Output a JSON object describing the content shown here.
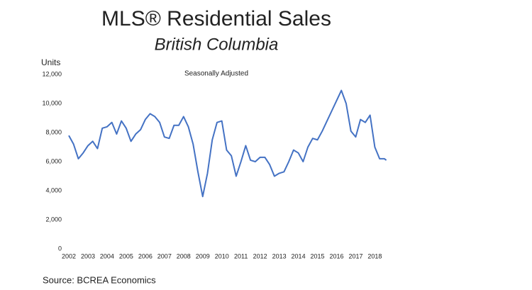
{
  "chart_data": {
    "type": "line",
    "title": "MLS® Residential Sales",
    "subtitle": "British Columbia",
    "y_label": "Units",
    "annotation": "Seasonally Adjusted",
    "source": "Source: BCREA Economics",
    "x": [
      2002,
      2002.25,
      2002.5,
      2002.75,
      2003,
      2003.25,
      2003.5,
      2003.75,
      2004,
      2004.25,
      2004.5,
      2004.75,
      2005,
      2005.25,
      2005.5,
      2005.75,
      2006,
      2006.25,
      2006.5,
      2006.75,
      2007,
      2007.25,
      2007.5,
      2007.75,
      2008,
      2008.25,
      2008.5,
      2008.75,
      2009,
      2009.25,
      2009.5,
      2009.75,
      2010,
      2010.25,
      2010.5,
      2010.75,
      2011,
      2011.25,
      2011.5,
      2011.75,
      2012,
      2012.25,
      2012.5,
      2012.75,
      2013,
      2013.25,
      2013.5,
      2013.75,
      2014,
      2014.25,
      2014.5,
      2014.75,
      2015,
      2015.25,
      2015.5,
      2015.75,
      2016,
      2016.25,
      2016.5,
      2016.75,
      2017,
      2017.25,
      2017.5,
      2017.75,
      2018,
      2018.25,
      2018.5,
      2018.6
    ],
    "series": [
      {
        "name": "Units",
        "color": "#4472c4",
        "values": [
          7800,
          7200,
          6200,
          6600,
          7100,
          7400,
          6900,
          8300,
          8400,
          8700,
          7900,
          8800,
          8300,
          7400,
          7900,
          8200,
          8900,
          9300,
          9100,
          8700,
          7700,
          7600,
          8500,
          8500,
          9100,
          8400,
          7200,
          5300,
          3600,
          5200,
          7500,
          8700,
          8800,
          6800,
          6400,
          5000,
          6000,
          7100,
          6100,
          6000,
          6300,
          6300,
          5800,
          5000,
          5200,
          5300,
          6000,
          6800,
          6600,
          6000,
          7000,
          7600,
          7500,
          8100,
          8800,
          9500,
          10200,
          10900,
          10000,
          8100,
          7700,
          8900,
          8700,
          9200,
          7000,
          6200,
          6200,
          6100
        ]
      }
    ],
    "xlim": [
      2002,
      2018.8
    ],
    "xticks": [
      2002,
      2003,
      2004,
      2005,
      2006,
      2007,
      2008,
      2009,
      2010,
      2011,
      2012,
      2013,
      2014,
      2015,
      2016,
      2017,
      2018
    ],
    "ylim": [
      0,
      12000
    ],
    "yticks": [
      0,
      {
        "value": 2000,
        "label": "2,000"
      },
      {
        "value": 4000,
        "label": "4,000"
      },
      {
        "value": 6000,
        "label": "6,000"
      },
      {
        "value": 8000,
        "label": "8,000"
      },
      {
        "value": 10000,
        "label": "10,000"
      },
      {
        "value": 12000,
        "label": "12,000"
      }
    ],
    "grid": false
  }
}
